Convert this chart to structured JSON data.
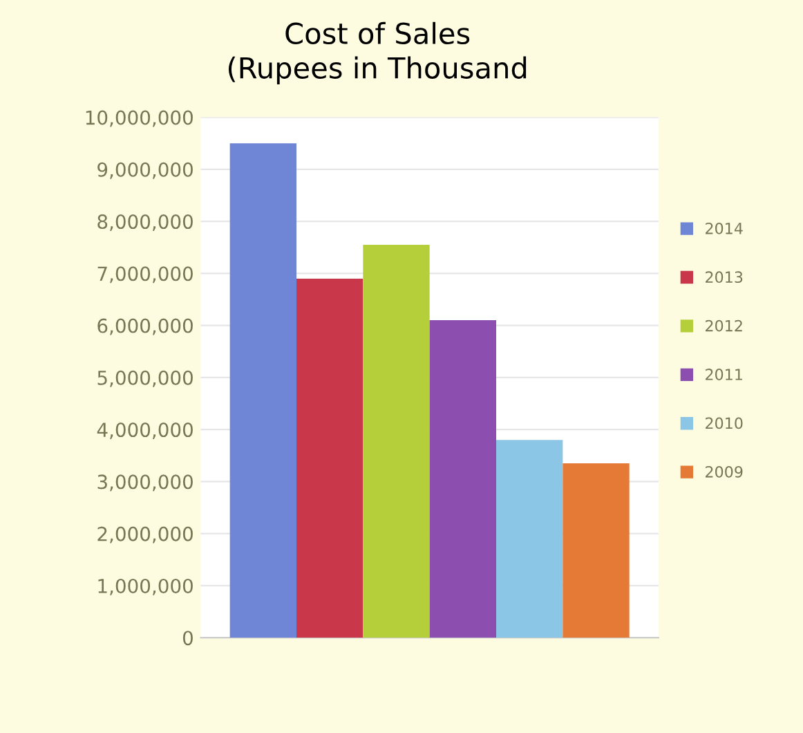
{
  "chart_data": {
    "type": "bar",
    "title": "Cost of Sales\n(Rupees in Thousand",
    "categories": [
      null
    ],
    "series": [
      {
        "name": "2014",
        "color": "#6f86d6",
        "values": [
          9500000
        ]
      },
      {
        "name": "2013",
        "color": "#c8384a",
        "values": [
          6900000
        ]
      },
      {
        "name": "2012",
        "color": "#b5cf3a",
        "values": [
          7550000
        ]
      },
      {
        "name": "2011",
        "color": "#8c4fb0",
        "values": [
          6100000
        ]
      },
      {
        "name": "2010",
        "color": "#8cc6e6",
        "values": [
          3800000
        ]
      },
      {
        "name": "2009",
        "color": "#e47a35",
        "values": [
          3350000
        ]
      }
    ],
    "ylim": [
      0,
      10000000
    ],
    "yticks": [
      {
        "value": 0,
        "label": "0"
      },
      {
        "value": 1000000,
        "label": "1,000,000"
      },
      {
        "value": 2000000,
        "label": "2,000,000"
      },
      {
        "value": 3000000,
        "label": "3,000,000"
      },
      {
        "value": 4000000,
        "label": "4,000,000"
      },
      {
        "value": 5000000,
        "label": "5,000,000"
      },
      {
        "value": 6000000,
        "label": "6,000,000"
      },
      {
        "value": 7000000,
        "label": "7,000,000"
      },
      {
        "value": 8000000,
        "label": "8,000,000"
      },
      {
        "value": 9000000,
        "label": "9,000,000"
      },
      {
        "value": 10000000,
        "label": "10,000,000"
      }
    ],
    "grid": "y",
    "legend": "right"
  }
}
